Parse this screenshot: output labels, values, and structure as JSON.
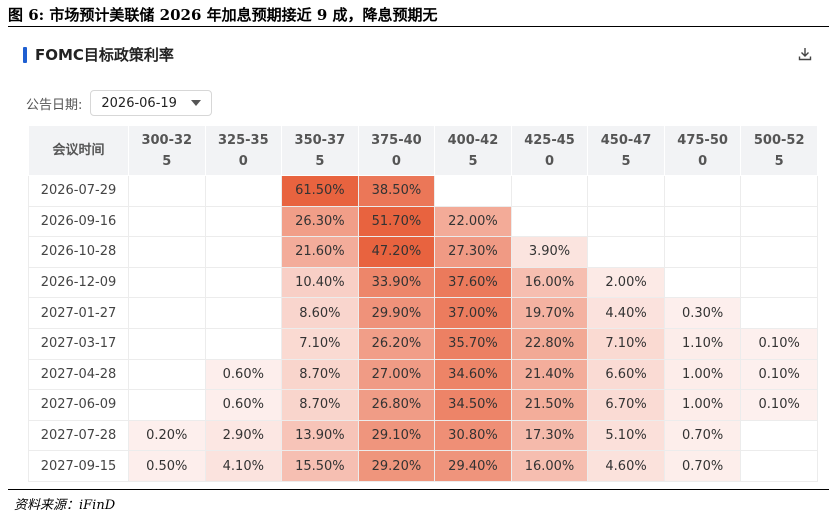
{
  "figure_title": "图 6:  市场预计美联储 2026 年加息预期接近 9 成，降息预期无",
  "panel_title": "FOMC目标政策利率",
  "filter": {
    "label": "公告日期:",
    "value": "2026-06-19"
  },
  "icons": {
    "download": "download-icon",
    "dropdown": "chevron-down-icon"
  },
  "source": "资料来源：iFinD",
  "table": {
    "corner": "会议时间",
    "headers": [
      [
        "300-32",
        "5"
      ],
      [
        "325-35",
        "0"
      ],
      [
        "350-37",
        "5"
      ],
      [
        "375-40",
        "0"
      ],
      [
        "400-42",
        "5"
      ],
      [
        "425-45",
        "0"
      ],
      [
        "450-47",
        "5"
      ],
      [
        "475-50",
        "0"
      ],
      [
        "500-52",
        "5"
      ]
    ],
    "rows": [
      {
        "date": "2026-07-29",
        "values": [
          "",
          "",
          "61.50%",
          "38.50%",
          "",
          "",
          "",
          "",
          ""
        ]
      },
      {
        "date": "2026-09-16",
        "values": [
          "",
          "",
          "26.30%",
          "51.70%",
          "22.00%",
          "",
          "",
          "",
          ""
        ]
      },
      {
        "date": "2026-10-28",
        "values": [
          "",
          "",
          "21.60%",
          "47.20%",
          "27.30%",
          "3.90%",
          "",
          "",
          ""
        ]
      },
      {
        "date": "2026-12-09",
        "values": [
          "",
          "",
          "10.40%",
          "33.90%",
          "37.60%",
          "16.00%",
          "2.00%",
          "",
          ""
        ]
      },
      {
        "date": "2027-01-27",
        "values": [
          "",
          "",
          "8.60%",
          "29.90%",
          "37.00%",
          "19.70%",
          "4.40%",
          "0.30%",
          ""
        ]
      },
      {
        "date": "2027-03-17",
        "values": [
          "",
          "",
          "7.10%",
          "26.20%",
          "35.70%",
          "22.80%",
          "7.10%",
          "1.10%",
          "0.10%"
        ]
      },
      {
        "date": "2027-04-28",
        "values": [
          "",
          "0.60%",
          "8.70%",
          "27.00%",
          "34.60%",
          "21.40%",
          "6.60%",
          "1.00%",
          "0.10%"
        ]
      },
      {
        "date": "2027-06-09",
        "values": [
          "",
          "0.60%",
          "8.70%",
          "26.80%",
          "34.50%",
          "21.50%",
          "6.70%",
          "1.00%",
          "0.10%"
        ]
      },
      {
        "date": "2027-07-28",
        "values": [
          "0.20%",
          "2.90%",
          "13.90%",
          "29.10%",
          "30.80%",
          "17.30%",
          "5.10%",
          "0.70%",
          ""
        ]
      },
      {
        "date": "2027-09-15",
        "values": [
          "0.50%",
          "4.10%",
          "15.50%",
          "29.20%",
          "29.40%",
          "16.00%",
          "4.60%",
          "0.70%",
          ""
        ]
      }
    ]
  },
  "colors": {
    "accent": "#1f5fd1",
    "heat_low": "#fdf0ee",
    "heat_high": "#e8633f"
  }
}
